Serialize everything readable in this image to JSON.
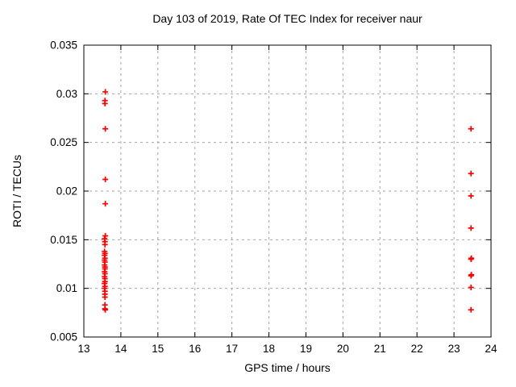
{
  "chart_data": {
    "type": "scatter",
    "title": "Day 103 of 2019, Rate Of TEC Index for receiver naur",
    "xlabel": "GPS time / hours",
    "ylabel": "ROTI / TECUs",
    "xlim": [
      13,
      24
    ],
    "ylim": [
      0.005,
      0.035
    ],
    "xticks": [
      13,
      14,
      15,
      16,
      17,
      18,
      19,
      20,
      21,
      22,
      23,
      24
    ],
    "xtick_labels": [
      "13",
      "14",
      "15",
      "16",
      "17",
      "18",
      "19",
      "20",
      "21",
      "22",
      "23",
      "24"
    ],
    "yticks": [
      0.005,
      0.01,
      0.015,
      0.02,
      0.025,
      0.03,
      0.035
    ],
    "ytick_labels": [
      "0.005",
      "0.01",
      "0.015",
      "0.02",
      "0.025",
      "0.03",
      "0.035"
    ],
    "grid": true,
    "legend": "none",
    "marker": {
      "shape": "plus",
      "color": "#ff0000",
      "size": 7
    },
    "colors": {
      "background": "#ffffff",
      "border": "#000000",
      "grid": "#a6a6a6",
      "text": "#000000",
      "marker": "#ff0000"
    },
    "series": [
      {
        "name": "ROTI",
        "points": [
          [
            13.58,
            0.0302
          ],
          [
            13.57,
            0.0293
          ],
          [
            13.57,
            0.029
          ],
          [
            13.58,
            0.0264
          ],
          [
            13.58,
            0.0212
          ],
          [
            13.58,
            0.0187
          ],
          [
            13.58,
            0.0154
          ],
          [
            13.56,
            0.0151
          ],
          [
            13.57,
            0.0148
          ],
          [
            13.57,
            0.0145
          ],
          [
            13.56,
            0.0138
          ],
          [
            13.57,
            0.0136
          ],
          [
            13.56,
            0.0134
          ],
          [
            13.57,
            0.0131
          ],
          [
            13.56,
            0.0129
          ],
          [
            13.57,
            0.0127
          ],
          [
            13.56,
            0.0124
          ],
          [
            13.57,
            0.0122
          ],
          [
            13.57,
            0.012
          ],
          [
            13.56,
            0.0117
          ],
          [
            13.57,
            0.0115
          ],
          [
            13.56,
            0.0112
          ],
          [
            13.57,
            0.011
          ],
          [
            13.57,
            0.0107
          ],
          [
            13.56,
            0.0105
          ],
          [
            13.57,
            0.0102
          ],
          [
            13.56,
            0.01
          ],
          [
            13.57,
            0.0097
          ],
          [
            13.57,
            0.0094
          ],
          [
            13.57,
            0.0091
          ],
          [
            13.57,
            0.0083
          ],
          [
            13.57,
            0.0079
          ],
          [
            13.58,
            0.0078
          ],
          [
            23.46,
            0.0264
          ],
          [
            23.46,
            0.0218
          ],
          [
            23.46,
            0.0195
          ],
          [
            23.46,
            0.0162
          ],
          [
            23.47,
            0.0131
          ],
          [
            23.46,
            0.013
          ],
          [
            23.47,
            0.0114
          ],
          [
            23.46,
            0.0113
          ],
          [
            23.46,
            0.0101
          ],
          [
            23.46,
            0.0078
          ]
        ]
      }
    ]
  }
}
